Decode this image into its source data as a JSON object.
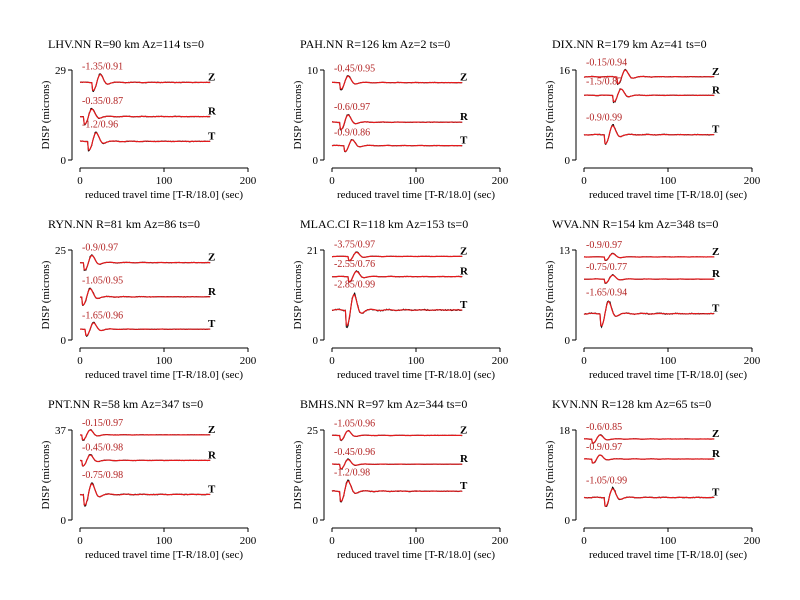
{
  "colors": {
    "data": "#000000",
    "synthetic": "#e41a1c",
    "annotation": "#b22222"
  },
  "chart_data": [
    {
      "type": "line",
      "title": "LHV.NN R=90 km Az=114 ts=0",
      "station": "LHV.NN",
      "ylabel": "DISP (microns)",
      "xlabel": "reduced travel time [T-R/18.0] (sec)",
      "xlim": [
        0,
        200
      ],
      "xticks": [
        "0",
        "100",
        "200"
      ],
      "ylim": [
        0,
        29
      ],
      "yticks": [
        "0",
        "29"
      ],
      "components": [
        {
          "name": "Z",
          "annotation": "-1.35/0.91",
          "baseline": 25,
          "amp": 3.2,
          "start": 20
        },
        {
          "name": "R",
          "annotation": "-0.35/0.87",
          "baseline": 14,
          "amp": 3.0,
          "start": 10
        },
        {
          "name": "T",
          "annotation": "-1.2/0.96",
          "baseline": 6,
          "amp": 3.5,
          "start": 15
        }
      ]
    },
    {
      "type": "line",
      "title": "PAH.NN R=126 km Az=2 ts=0",
      "station": "PAH.NN",
      "ylabel": "DISP (microns)",
      "xlabel": "reduced travel time [T-R/18.0] (sec)",
      "xlim": [
        0,
        200
      ],
      "xticks": [
        "0",
        "100",
        "200"
      ],
      "ylim": [
        0,
        10
      ],
      "yticks": [
        "0",
        "10"
      ],
      "components": [
        {
          "name": "Z",
          "annotation": "-0.45/0.95",
          "baseline": 8.6,
          "amp": 0.9,
          "start": 15
        },
        {
          "name": "R",
          "annotation": "-0.6/0.97",
          "baseline": 4.2,
          "amp": 1.0,
          "start": 15
        },
        {
          "name": "T",
          "annotation": "-0.9/0.86",
          "baseline": 1.6,
          "amp": 0.8,
          "start": 20
        }
      ]
    },
    {
      "type": "line",
      "title": "DIX.NN R=179 km Az=41 ts=0",
      "station": "DIX.NN",
      "ylabel": "DISP (microns)",
      "xlabel": "reduced travel time [T-R/18.0] (sec)",
      "xlim": [
        0,
        200
      ],
      "xticks": [
        "0",
        "100",
        "200"
      ],
      "ylim": [
        0,
        16
      ],
      "yticks": [
        "0",
        "16"
      ],
      "components": [
        {
          "name": "Z",
          "annotation": "-0.15/0.94",
          "baseline": 14.8,
          "amp": 1.5,
          "start": 45
        },
        {
          "name": "R",
          "annotation": "-1.5/0.87",
          "baseline": 11.5,
          "amp": 1.4,
          "start": 40
        },
        {
          "name": "T",
          "annotation": "-0.9/0.99",
          "baseline": 4.5,
          "amp": 2.0,
          "start": 30
        }
      ]
    },
    {
      "type": "line",
      "title": "RYN.NN R=81 km Az=86 ts=0",
      "station": "RYN.NN",
      "ylabel": "DISP (microns)",
      "xlabel": "reduced travel time [T-R/18.0] (sec)",
      "xlim": [
        0,
        200
      ],
      "xticks": [
        "0",
        "100",
        "200"
      ],
      "ylim": [
        0,
        25
      ],
      "yticks": [
        "0",
        "25"
      ],
      "components": [
        {
          "name": "Z",
          "annotation": "-0.9/0.97",
          "baseline": 21.5,
          "amp": 2.5,
          "start": 10
        },
        {
          "name": "R",
          "annotation": "-1.05/0.95",
          "baseline": 12,
          "amp": 2.8,
          "start": 8
        },
        {
          "name": "T",
          "annotation": "-1.65/0.96",
          "baseline": 3,
          "amp": 2.2,
          "start": 12
        }
      ]
    },
    {
      "type": "line",
      "title": "MLAC.CI R=118 km Az=153 ts=0",
      "station": "MLAC.CI",
      "ylabel": "DISP (microns)",
      "xlabel": "reduced travel time [T-R/18.0] (sec)",
      "xlim": [
        0,
        200
      ],
      "xticks": [
        "0",
        "100",
        "200"
      ],
      "ylim": [
        0,
        21
      ],
      "yticks": [
        "0",
        "21"
      ],
      "components": [
        {
          "name": "Z",
          "annotation": "-3.75/0.97",
          "baseline": 19.5,
          "amp": 1.2,
          "start": 25
        },
        {
          "name": "R",
          "annotation": "-2.55/0.76",
          "baseline": 14.8,
          "amp": 1.5,
          "start": 25
        },
        {
          "name": "T",
          "annotation": "-2.85/0.99",
          "baseline": 7,
          "amp": 4.5,
          "start": 22
        }
      ]
    },
    {
      "type": "line",
      "title": "WVA.NN R=154 km Az=348 ts=0",
      "station": "WVA.NN",
      "ylabel": "DISP (microns)",
      "xlabel": "reduced travel time [T-R/18.0] (sec)",
      "xlim": [
        0,
        200
      ],
      "xticks": [
        "0",
        "100",
        "200"
      ],
      "ylim": [
        0,
        13
      ],
      "yticks": [
        "0",
        "13"
      ],
      "components": [
        {
          "name": "Z",
          "annotation": "-0.9/0.97",
          "baseline": 12,
          "amp": 0.6,
          "start": 30
        },
        {
          "name": "R",
          "annotation": "-0.75/0.77",
          "baseline": 8.8,
          "amp": 0.7,
          "start": 30
        },
        {
          "name": "T",
          "annotation": "-1.65/0.94",
          "baseline": 3.8,
          "amp": 2.2,
          "start": 25
        }
      ]
    },
    {
      "type": "line",
      "title": "PNT.NN R=58 km Az=347 ts=0",
      "station": "PNT.NN",
      "ylabel": "DISP (microns)",
      "xlabel": "reduced travel time [T-R/18.0] (sec)",
      "xlim": [
        0,
        200
      ],
      "xticks": [
        "0",
        "100",
        "200"
      ],
      "ylim": [
        0,
        37
      ],
      "yticks": [
        "0",
        "37"
      ],
      "components": [
        {
          "name": "Z",
          "annotation": "-0.15/0.97",
          "baseline": 35,
          "amp": 2.5,
          "start": 8
        },
        {
          "name": "R",
          "annotation": "-0.45/0.98",
          "baseline": 24.5,
          "amp": 2.8,
          "start": 8
        },
        {
          "name": "T",
          "annotation": "-0.75/0.98",
          "baseline": 10.5,
          "amp": 5.5,
          "start": 10
        }
      ]
    },
    {
      "type": "line",
      "title": "BMHS.NN R=97 km Az=344 ts=0",
      "station": "BMHS.NN",
      "ylabel": "DISP (microns)",
      "xlabel": "reduced travel time [T-R/18.0] (sec)",
      "xlim": [
        0,
        200
      ],
      "xticks": [
        "0",
        "100",
        "200"
      ],
      "ylim": [
        0,
        25
      ],
      "yticks": [
        "0",
        "25"
      ],
      "components": [
        {
          "name": "Z",
          "annotation": "-1.05/0.96",
          "baseline": 23.5,
          "amp": 1.6,
          "start": 15
        },
        {
          "name": "R",
          "annotation": "-0.45/0.96",
          "baseline": 15.5,
          "amp": 1.6,
          "start": 15
        },
        {
          "name": "T",
          "annotation": "-1.2/0.98",
          "baseline": 8,
          "amp": 3.5,
          "start": 15
        }
      ]
    },
    {
      "type": "line",
      "title": "KVN.NN R=128 km Az=65 ts=0",
      "station": "KVN.NN",
      "ylabel": "DISP (microns)",
      "xlabel": "reduced travel time [T-R/18.0] (sec)",
      "xlim": [
        0,
        200
      ],
      "xticks": [
        "0",
        "100",
        "200"
      ],
      "ylim": [
        0,
        18
      ],
      "yticks": [
        "0",
        "18"
      ],
      "components": [
        {
          "name": "Z",
          "annotation": "-0.6/0.85",
          "baseline": 16.2,
          "amp": 1.0,
          "start": 15
        },
        {
          "name": "R",
          "annotation": "-0.9/0.97",
          "baseline": 12.2,
          "amp": 1.0,
          "start": 15
        },
        {
          "name": "T",
          "annotation": "-1.05/0.99",
          "baseline": 4.5,
          "amp": 2.2,
          "start": 30
        }
      ]
    }
  ]
}
